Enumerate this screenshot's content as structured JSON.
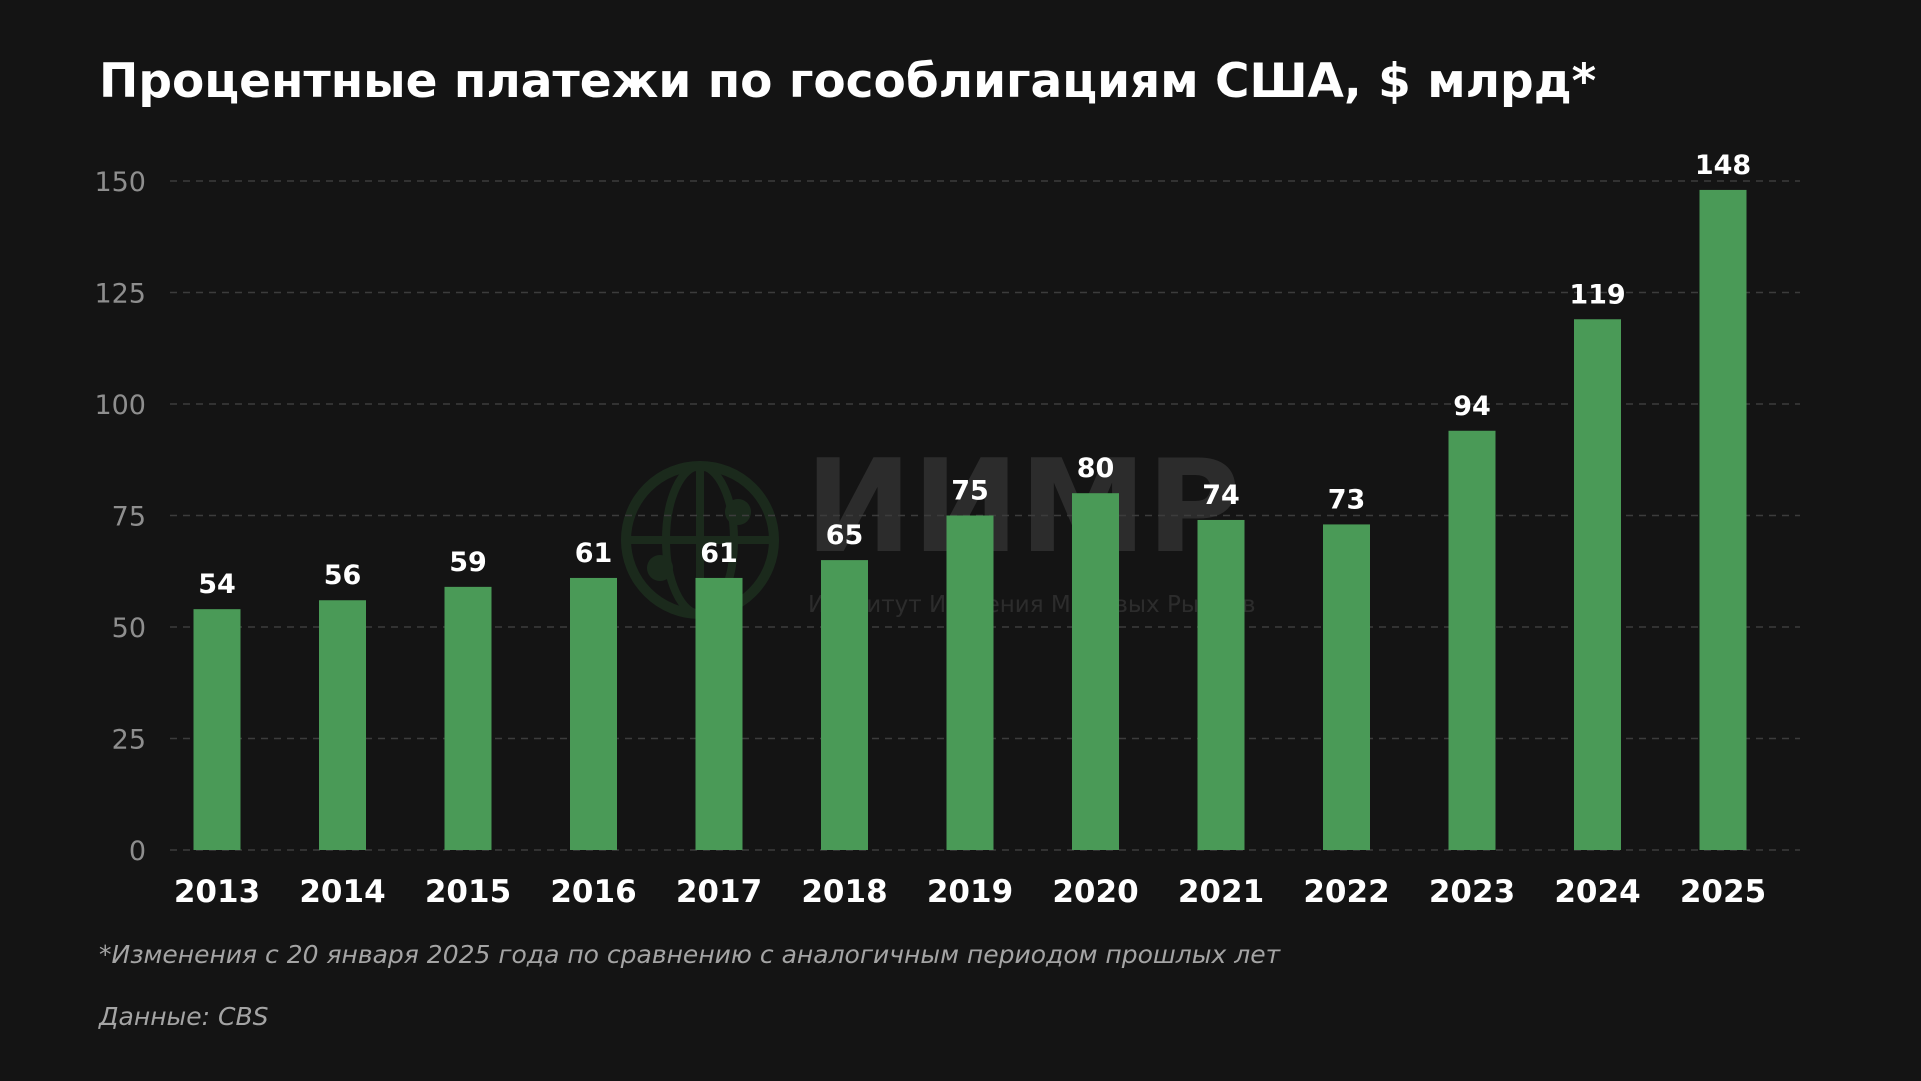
{
  "title": "Процентные платежи по гособлигациям США, $ млрд*",
  "watermark": {
    "name": "ИИМР",
    "subtitle": "Институт Изучения Мировых Рынков",
    "logo_icon": "globe-network-icon"
  },
  "footnote": "*Изменения с 20 января 2025 года по сравнению с аналогичным периодом прошлых лет",
  "source": "Данные: CBS",
  "colors": {
    "background": "#141414",
    "bar": "#4a9a57",
    "grid": "#3c3c3c",
    "text": "#ffffff",
    "muted": "#a4a4a4"
  },
  "chart_data": {
    "type": "bar",
    "categories": [
      "2013",
      "2014",
      "2015",
      "2016",
      "2017",
      "2018",
      "2019",
      "2020",
      "2021",
      "2022",
      "2023",
      "2024",
      "2025"
    ],
    "values": [
      54,
      56,
      59,
      61,
      61,
      65,
      75,
      80,
      74,
      73,
      94,
      119,
      148
    ],
    "data_labels": [
      "54",
      "56",
      "59",
      "61",
      "61",
      "65",
      "75",
      "80",
      "74",
      "73",
      "94",
      "119",
      "148"
    ],
    "yticks": [
      0,
      25,
      50,
      75,
      100,
      125,
      150
    ],
    "ylim": [
      0,
      150
    ],
    "grid": true,
    "grid_style": "dashed",
    "legend": "none",
    "xlabel": "",
    "ylabel": ""
  }
}
